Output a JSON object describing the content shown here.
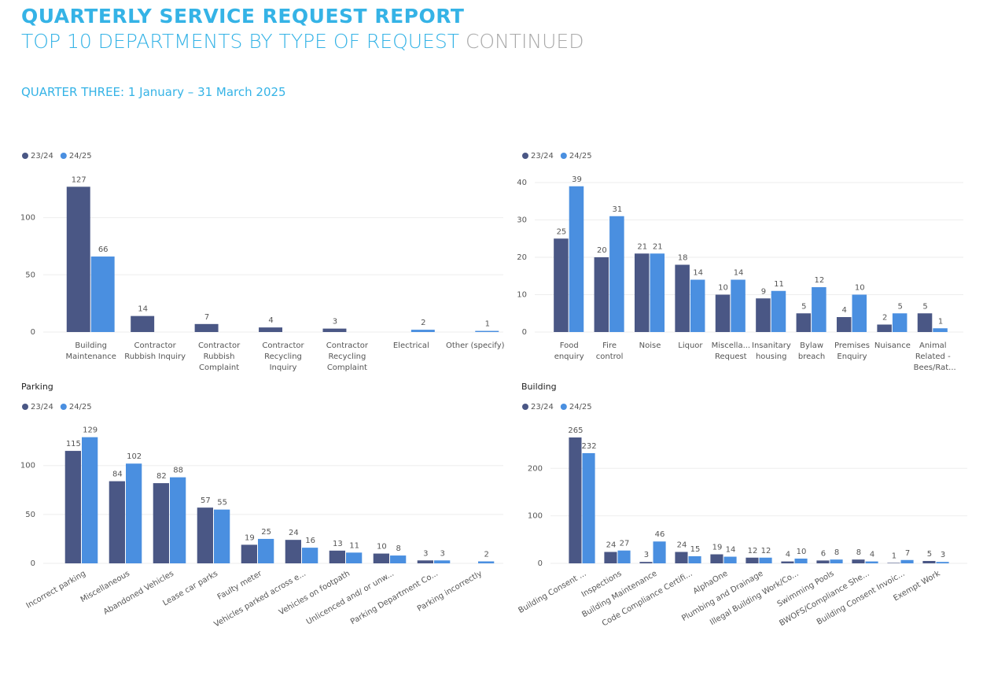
{
  "header": {
    "title": "QUARTERLY SERVICE REQUEST REPORT",
    "subtitle": "TOP 10 DEPARTMENTS BY TYPE OF REQUEST",
    "subtitle_suffix": "CONTINUED",
    "period": "QUARTER THREE: 1 January – 31 March 2025"
  },
  "chart_data": [
    {
      "type": "bar",
      "categories": [
        "Building Maintenance",
        "Contractor Rubbish Inquiry",
        "Contractor Rubbish Complaint",
        "Contractor Recycling Inquiry",
        "Contractor Recycling Complaint",
        "Electrical",
        "Other (specify)"
      ],
      "series": [
        {
          "name": "23/24",
          "color": "#4a5785",
          "values": [
            127,
            14,
            7,
            4,
            3,
            null,
            null
          ]
        },
        {
          "name": "24/25",
          "color": "#4a8fe0",
          "values": [
            66,
            null,
            null,
            null,
            null,
            2,
            1
          ]
        }
      ],
      "ylim": [
        0,
        130
      ],
      "yticks": [
        0,
        50,
        100
      ],
      "grid": true
    },
    {
      "type": "bar",
      "categories": [
        "Food enquiry",
        "Fire control",
        "Noise",
        "Liquor",
        "Miscella... Request",
        "Insanitary housing",
        "Bylaw breach",
        "Premises Enquiry",
        "Nuisance",
        "Animal Related - Bees/Rat..."
      ],
      "series": [
        {
          "name": "23/24",
          "color": "#4a5785",
          "values": [
            25,
            20,
            21,
            18,
            10,
            9,
            5,
            4,
            2,
            5
          ]
        },
        {
          "name": "24/25",
          "color": "#4a8fe0",
          "values": [
            39,
            31,
            21,
            14,
            14,
            11,
            12,
            10,
            5,
            1
          ]
        }
      ],
      "ylim": [
        0,
        40
      ],
      "yticks": [
        0,
        10,
        20,
        30,
        40
      ],
      "grid": true
    },
    {
      "type": "bar",
      "title": "Parking",
      "categories": [
        "Incorrect parking",
        "Miscellaneous",
        "Abandoned Vehicles",
        "Lease car parks",
        "Faulty meter",
        "Vehicles parked across e...",
        "Vehicles on footpath",
        "Unlicenced and/ or unw...",
        "Parking Department Co...",
        "Parking incorrectly"
      ],
      "series": [
        {
          "name": "23/24",
          "color": "#4a5785",
          "values": [
            115,
            84,
            82,
            57,
            19,
            24,
            13,
            10,
            3,
            null
          ]
        },
        {
          "name": "24/25",
          "color": "#4a8fe0",
          "values": [
            129,
            102,
            88,
            55,
            25,
            16,
            11,
            8,
            3,
            2
          ]
        }
      ],
      "ylim": [
        0,
        140
      ],
      "yticks": [
        0,
        50,
        100
      ],
      "grid": true
    },
    {
      "type": "bar",
      "title": "Building",
      "categories": [
        "Building Consent ...",
        "Inspections",
        "Building Maintenance",
        "Code Compliance Certifi...",
        "AlphaOne",
        "Plumbing and Drainage",
        "Illegal Building Work/Co...",
        "Swimming Pools",
        "BWOFS/Compliance She...",
        "Building Consent Invoic...",
        "Exempt Work"
      ],
      "series": [
        {
          "name": "23/24",
          "color": "#4a5785",
          "values": [
            265,
            24,
            3,
            24,
            19,
            12,
            4,
            6,
            8,
            1,
            5
          ]
        },
        {
          "name": "24/25",
          "color": "#4a8fe0",
          "values": [
            232,
            27,
            46,
            15,
            14,
            12,
            10,
            8,
            4,
            7,
            3
          ]
        }
      ],
      "ylim": [
        0,
        270
      ],
      "yticks": [
        0,
        100,
        200
      ],
      "grid": true
    }
  ]
}
